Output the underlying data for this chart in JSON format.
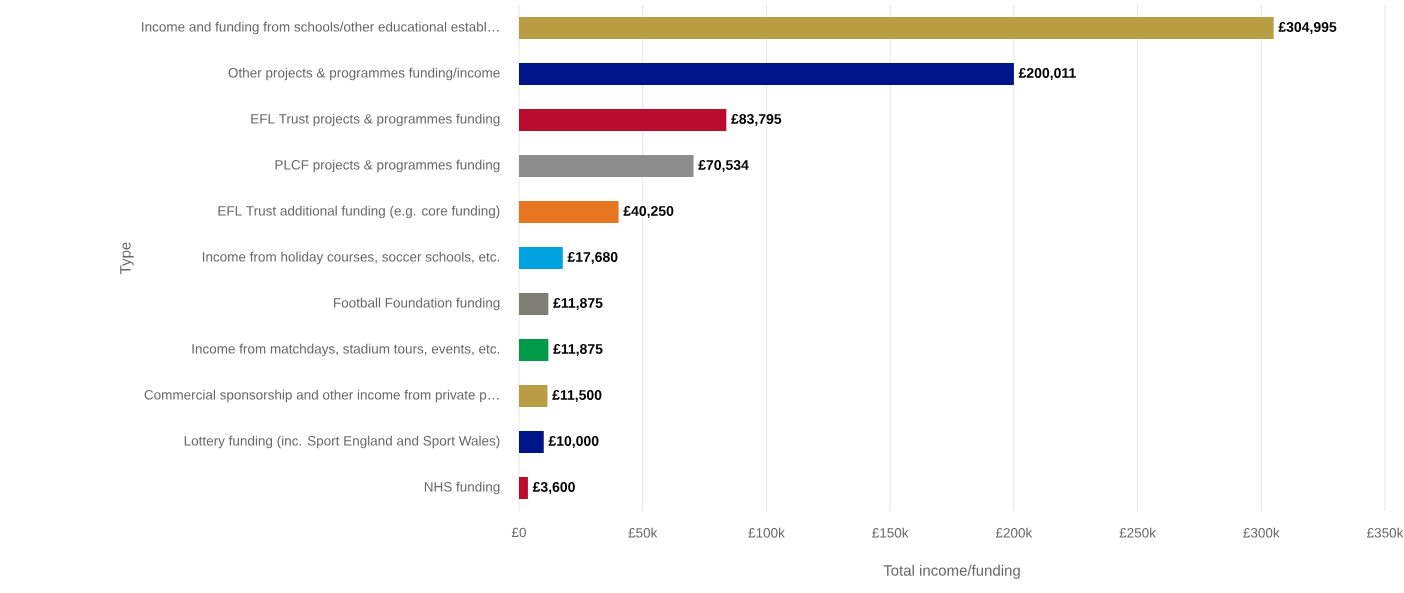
{
  "chart_data": {
    "type": "bar",
    "orientation": "horizontal",
    "xlabel": "Total income/funding",
    "ylabel": "Type",
    "categories": [
      "Income and funding from schools/other educational establ…",
      "Other projects & programmes funding/income",
      "EFL Trust projects & programmes funding",
      "PLCF projects & programmes funding",
      "EFL Trust additional funding (e.g. core funding)",
      "Income from holiday courses, soccer schools, etc.",
      "Football Foundation funding",
      "Income from matchdays, stadium tours, events, etc.",
      "Commercial sponsorship and other income from private p…",
      "Lottery funding (inc. Sport England and Sport Wales)",
      "NHS funding"
    ],
    "values": [
      304995,
      200011,
      83795,
      70534,
      40250,
      17680,
      11875,
      11875,
      11500,
      10000,
      3600
    ],
    "value_labels": [
      "£304,995",
      "£200,011",
      "£83,795",
      "£70,534",
      "£40,250",
      "£17,680",
      "£11,875",
      "£11,875",
      "£11,500",
      "£10,000",
      "£3,600"
    ],
    "colors": [
      "#b89d43",
      "#001489",
      "#ba0c2f",
      "#8d8d8d",
      "#e87722",
      "#00a3e0",
      "#7f7f76",
      "#009b48",
      "#b89d43",
      "#001489",
      "#ba0c2f"
    ],
    "xlim": [
      0,
      350000
    ],
    "xticks": [
      {
        "value": 0,
        "label": "£0"
      },
      {
        "value": 50000,
        "label": "£50k"
      },
      {
        "value": 100000,
        "label": "£100k"
      },
      {
        "value": 150000,
        "label": "£150k"
      },
      {
        "value": 200000,
        "label": "£200k"
      },
      {
        "value": 250000,
        "label": "£250k"
      },
      {
        "value": 300000,
        "label": "£300k"
      },
      {
        "value": 350000,
        "label": "£350k"
      }
    ],
    "grid": "x"
  }
}
